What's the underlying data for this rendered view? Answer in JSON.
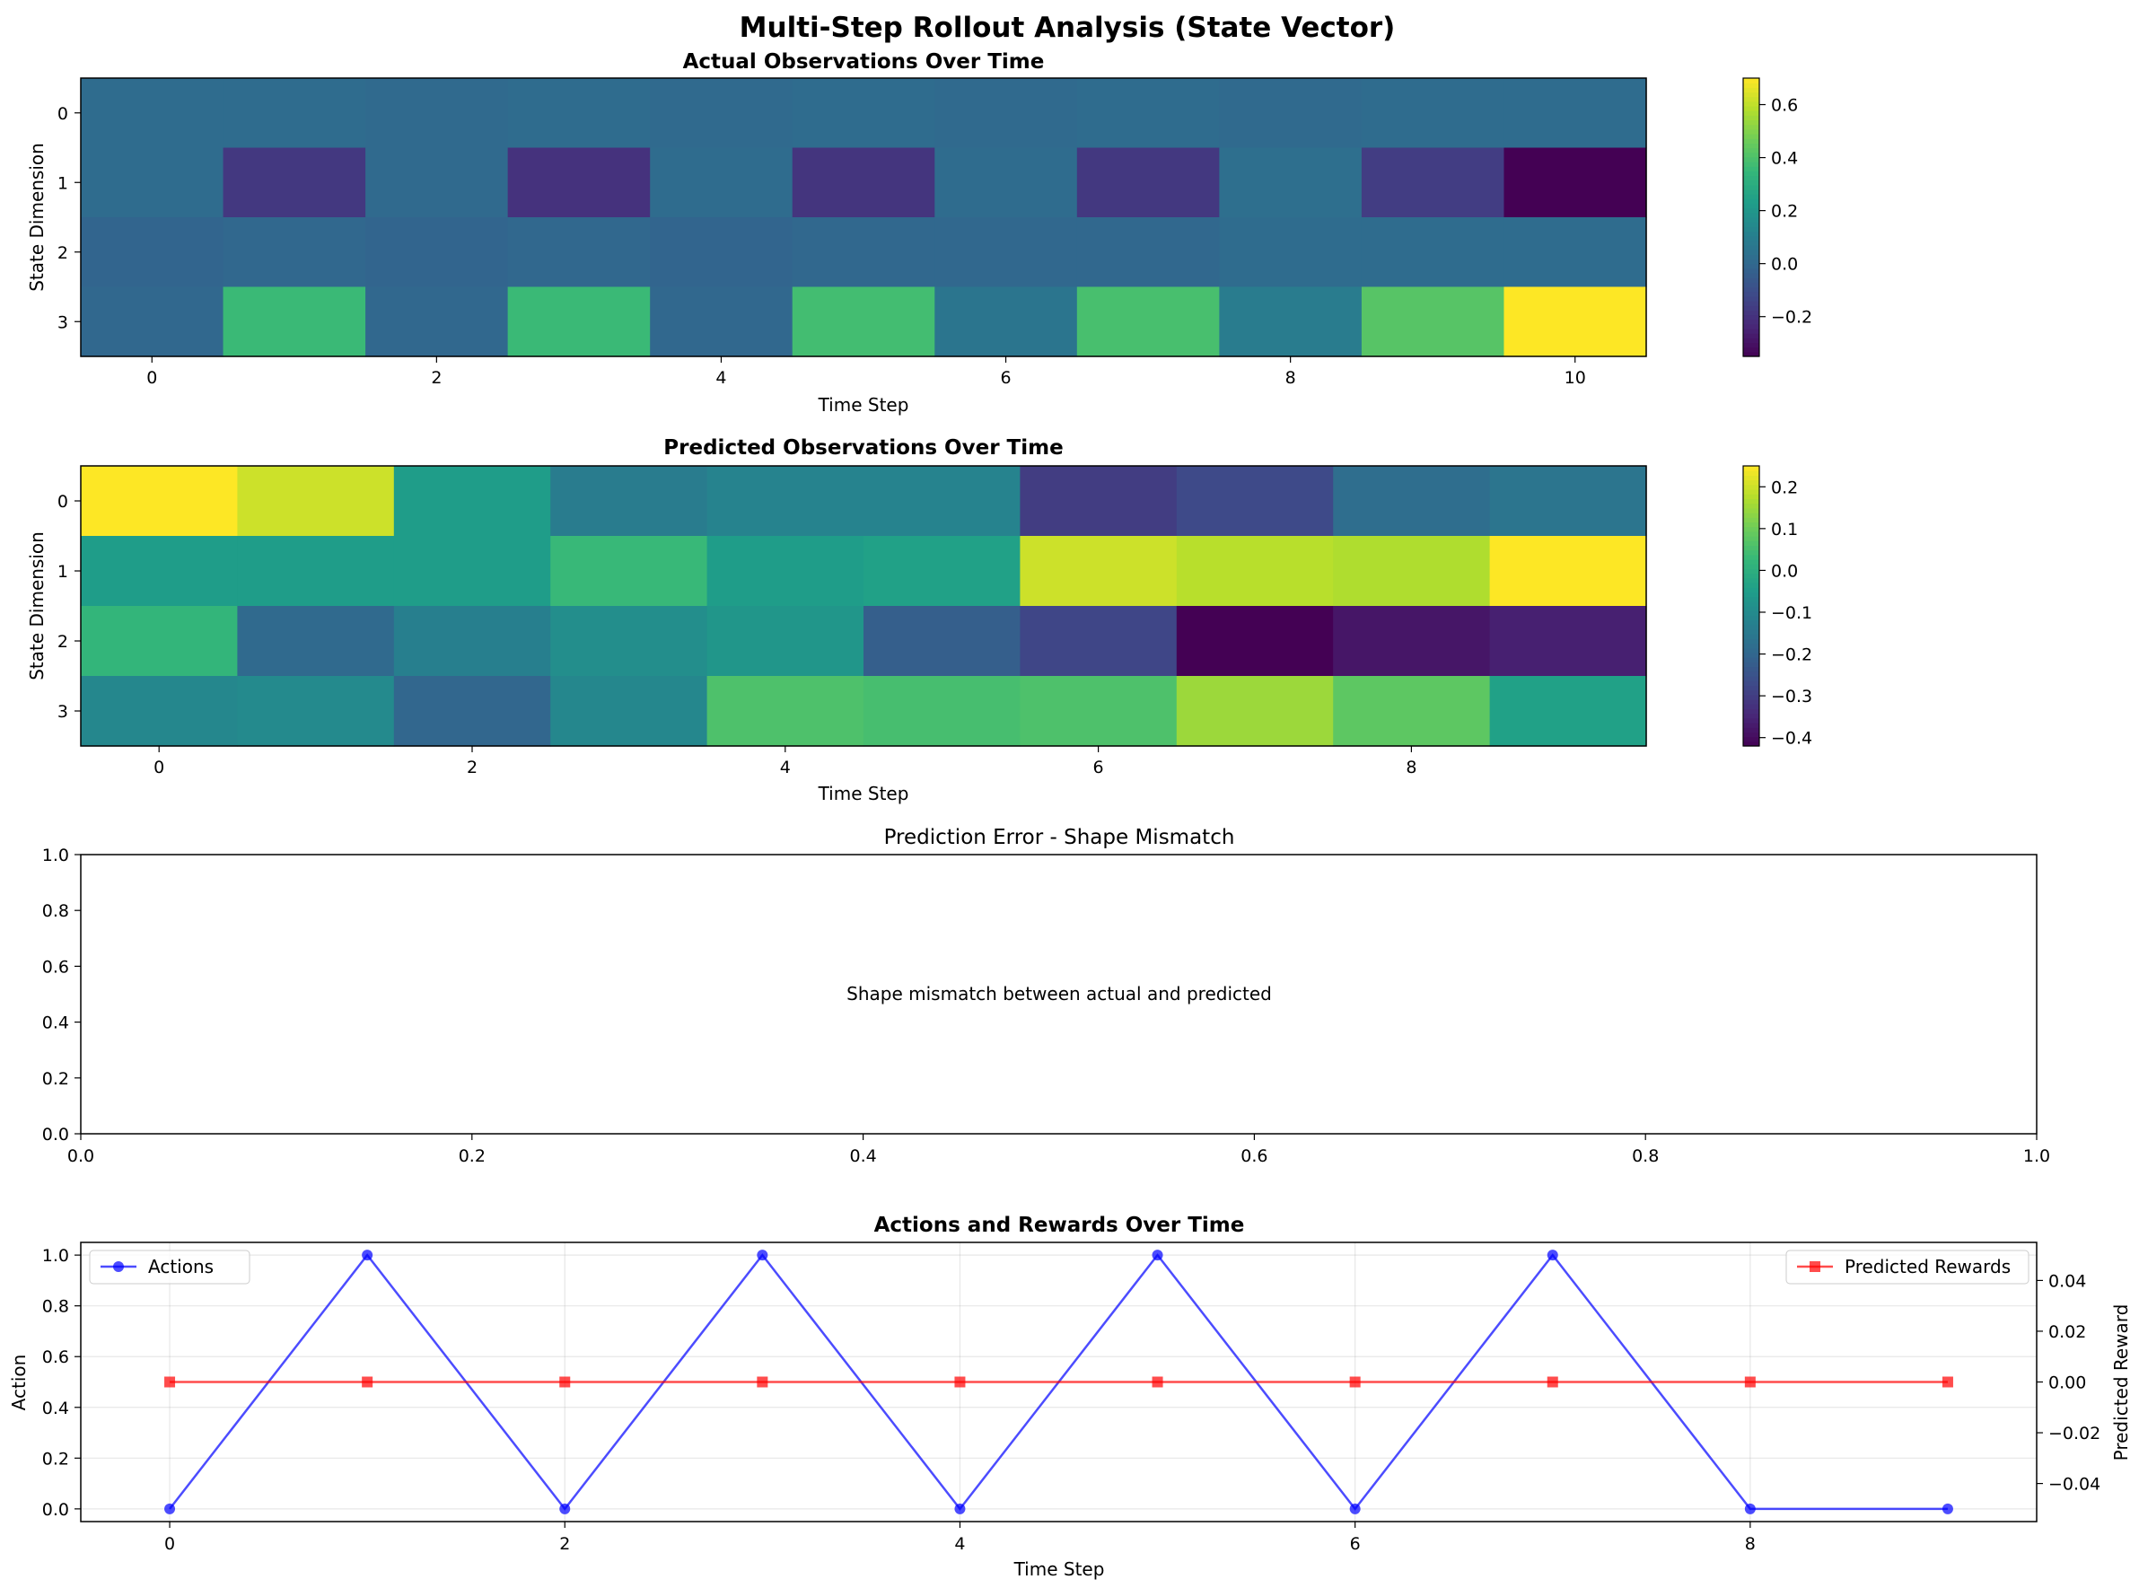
{
  "figure": {
    "suptitle": "Multi-Step Rollout Analysis (State Vector)"
  },
  "chart_data": [
    {
      "type": "heatmap",
      "title": "Actual Observations Over Time",
      "xlabel": "Time Step",
      "ylabel": "State Dimension",
      "x": [
        0,
        1,
        2,
        3,
        4,
        5,
        6,
        7,
        8,
        9,
        10
      ],
      "y": [
        0,
        1,
        2,
        3
      ],
      "xticks": [
        0,
        2,
        4,
        6,
        8,
        10
      ],
      "yticks": [
        0,
        1,
        2,
        3
      ],
      "colormap": "viridis",
      "vmin": -0.35,
      "vmax": 0.7,
      "colorbar_ticks": [
        -0.2,
        0.0,
        0.2,
        0.4,
        0.6
      ],
      "values": [
        [
          0.02,
          0.02,
          0.01,
          0.02,
          0.01,
          0.02,
          0.01,
          0.02,
          0.01,
          0.02,
          0.02
        ],
        [
          0.02,
          -0.18,
          0.01,
          -0.2,
          0.02,
          -0.19,
          0.02,
          -0.18,
          0.03,
          -0.16,
          -0.35
        ],
        [
          -0.01,
          0.0,
          -0.01,
          0.0,
          -0.01,
          0.0,
          0.0,
          0.0,
          0.02,
          0.02,
          0.02
        ],
        [
          0.0,
          0.36,
          0.0,
          0.36,
          0.0,
          0.38,
          0.06,
          0.39,
          0.09,
          0.42,
          0.7
        ]
      ]
    },
    {
      "type": "heatmap",
      "title": "Predicted Observations Over Time",
      "xlabel": "Time Step",
      "ylabel": "State Dimension",
      "x": [
        0,
        1,
        2,
        3,
        4,
        5,
        6,
        7,
        8,
        9
      ],
      "y": [
        0,
        1,
        2,
        3
      ],
      "xticks": [
        0,
        2,
        4,
        6,
        8
      ],
      "yticks": [
        0,
        1,
        2,
        3
      ],
      "colormap": "viridis",
      "vmin": -0.42,
      "vmax": 0.25,
      "colorbar_ticks": [
        -0.4,
        -0.3,
        -0.2,
        -0.1,
        0.0,
        0.1,
        0.2
      ],
      "values": [
        [
          0.25,
          0.2,
          -0.05,
          -0.14,
          -0.12,
          -0.12,
          -0.3,
          -0.27,
          -0.18,
          -0.16
        ],
        [
          -0.05,
          -0.05,
          -0.05,
          0.03,
          -0.05,
          -0.04,
          0.2,
          0.18,
          0.17,
          0.25
        ],
        [
          0.02,
          -0.19,
          -0.13,
          -0.09,
          -0.07,
          -0.22,
          -0.28,
          -0.42,
          -0.38,
          -0.36
        ],
        [
          -0.11,
          -0.1,
          -0.2,
          -0.11,
          0.06,
          0.05,
          0.06,
          0.15,
          0.08,
          -0.04
        ]
      ]
    },
    {
      "type": "scatter",
      "title": "Prediction Error - Shape Mismatch",
      "annotation": "Shape mismatch between actual and predicted",
      "xlim": [
        0,
        1
      ],
      "ylim": [
        0,
        1
      ],
      "xticks": [
        "0.0",
        "0.2",
        "0.4",
        "0.6",
        "0.8",
        "1.0"
      ],
      "yticks": [
        "0.0",
        "0.2",
        "0.4",
        "0.6",
        "0.8",
        "1.0"
      ],
      "series": []
    },
    {
      "type": "line",
      "title": "Actions and Rewards Over Time",
      "xlabel": "Time Step",
      "ylabel": "Action",
      "ylabel_right": "Predicted Reward",
      "x": [
        0,
        1,
        2,
        3,
        4,
        5,
        6,
        7,
        8,
        9
      ],
      "xticks": [
        0,
        2,
        4,
        6,
        8
      ],
      "xlim": [
        -0.45,
        9.45
      ],
      "ylim": [
        -0.05,
        1.05
      ],
      "yticks": [
        "0.0",
        "0.2",
        "0.4",
        "0.6",
        "0.8",
        "1.0"
      ],
      "ylim_right": [
        -0.055,
        0.055
      ],
      "yticks_right": [
        "−0.04",
        "−0.02",
        "0.00",
        "0.02",
        "0.04"
      ],
      "yticks_right_values": [
        -0.04,
        -0.02,
        0.0,
        0.02,
        0.04
      ],
      "grid": true,
      "series": [
        {
          "name": "Actions",
          "axis": "left",
          "color": "#0000ff",
          "marker": "circle",
          "values": [
            0,
            1,
            0,
            1,
            0,
            1,
            0,
            1,
            0,
            0
          ],
          "legend": "top-left"
        },
        {
          "name": "Predicted Rewards",
          "axis": "right",
          "color": "#ff0000",
          "marker": "square",
          "values": [
            0,
            0,
            0,
            0,
            0,
            0,
            0,
            0,
            0,
            0
          ],
          "legend": "top-right"
        }
      ]
    }
  ]
}
